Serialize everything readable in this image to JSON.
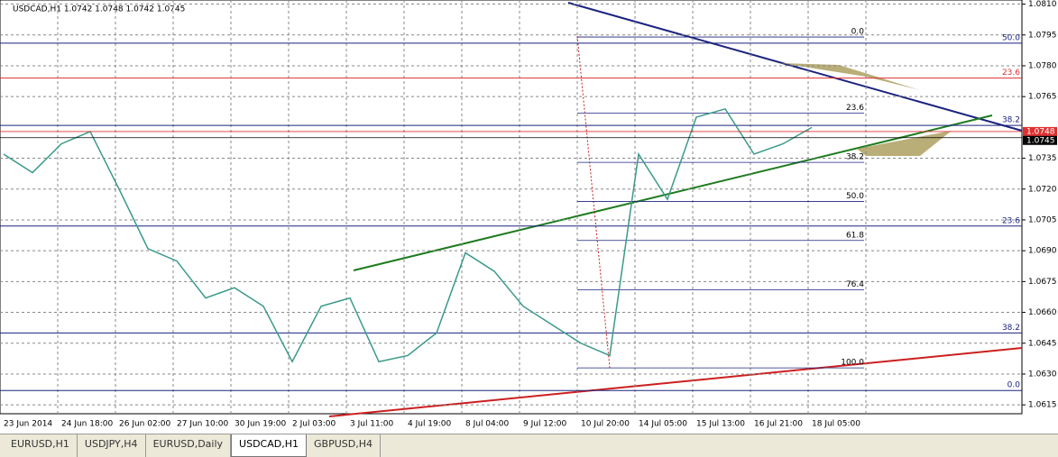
{
  "chart_data": {
    "type": "line",
    "title": "USDCAD,H1  1.0742 1.0748 1.0742 1.0745",
    "categories": [
      "23 Jun 2014",
      null,
      "24 Jun 18:00",
      null,
      "26 Jun 02:00",
      null,
      "27 Jun 10:00",
      null,
      "30 Jun 19:00",
      null,
      "2 Jul 03:00",
      null,
      "3 Jul 11:00",
      null,
      "4 Jul 19:00",
      null,
      "8 Jul 04:00",
      null,
      "9 Jul 12:00",
      null,
      "10 Jul 20:00",
      null,
      "14 Jul 05:00",
      null,
      "15 Jul 13:00",
      null,
      "16 Jul 21:00",
      null,
      "18 Jul 05:00"
    ],
    "series": [
      {
        "name": "USDCAD",
        "color": "#3a9a8a",
        "values": [
          1.0737,
          1.0728,
          1.0742,
          1.0748,
          1.072,
          1.0691,
          1.0685,
          1.0667,
          1.0672,
          1.0663,
          1.0636,
          1.0663,
          1.0667,
          1.0636,
          1.0639,
          1.065,
          1.0689,
          1.068,
          1.0663,
          1.0654,
          1.0645,
          1.0639,
          1.0737,
          1.0715,
          1.0755,
          1.0759,
          1.0737,
          1.0742,
          1.075
        ]
      }
    ],
    "ylim": [
      1.0612,
      1.0812
    ],
    "yticks": [
      {
        "value": 1.081,
        "label": "1.0810"
      },
      {
        "value": 1.0795,
        "label": "1.0795"
      },
      {
        "value": 1.078,
        "label": "1.0780"
      },
      {
        "value": 1.0765,
        "label": "1.0765"
      },
      {
        "value": 1.0735,
        "label": "1.0735"
      },
      {
        "value": 1.072,
        "label": "1.0720"
      },
      {
        "value": 1.0705,
        "label": "1.0705"
      },
      {
        "value": 1.069,
        "label": "1.0690"
      },
      {
        "value": 1.0675,
        "label": "1.0675"
      },
      {
        "value": 1.066,
        "label": "1.0660"
      },
      {
        "value": 1.0645,
        "label": "1.0645"
      },
      {
        "value": 1.063,
        "label": "1.0630"
      },
      {
        "value": 1.0615,
        "label": "1.0615"
      }
    ],
    "grid": true,
    "price_lines": [
      {
        "value": 1.0748,
        "color": "#e03030"
      },
      {
        "value": 1.0745,
        "color": "#000000"
      }
    ],
    "fib_inner": [
      {
        "label": "0.0",
        "value": 1.0794
      },
      {
        "label": "23.6",
        "value": 1.0757
      },
      {
        "label": "38.2",
        "value": 1.0733
      },
      {
        "label": "50.0",
        "value": 1.0714
      },
      {
        "label": "61.8",
        "value": 1.0695
      },
      {
        "label": "76.4",
        "value": 1.0671
      },
      {
        "label": "100.0",
        "value": 1.0633
      }
    ],
    "fib_outer": [
      {
        "label": "50.0",
        "value": 1.0791,
        "color": "#1a237e"
      },
      {
        "label": "23.6",
        "value": 1.0774,
        "color": "#e03030"
      },
      {
        "label": "38.2",
        "value": 1.0751,
        "color": "#1a237e"
      },
      {
        "label": "23.6",
        "value": 1.0702,
        "color": "#1a237e"
      },
      {
        "label": "38.2",
        "value": 1.065,
        "color": "#1a237e"
      },
      {
        "label": "0.0",
        "value": 1.0622,
        "color": "#1a237e"
      }
    ]
  },
  "tabs": [
    "EURUSD,H1",
    "USDJPY,H4",
    "EURUSD,Daily",
    "USDCAD,H1",
    "GBPUSD,H4"
  ],
  "active_tab": 3
}
